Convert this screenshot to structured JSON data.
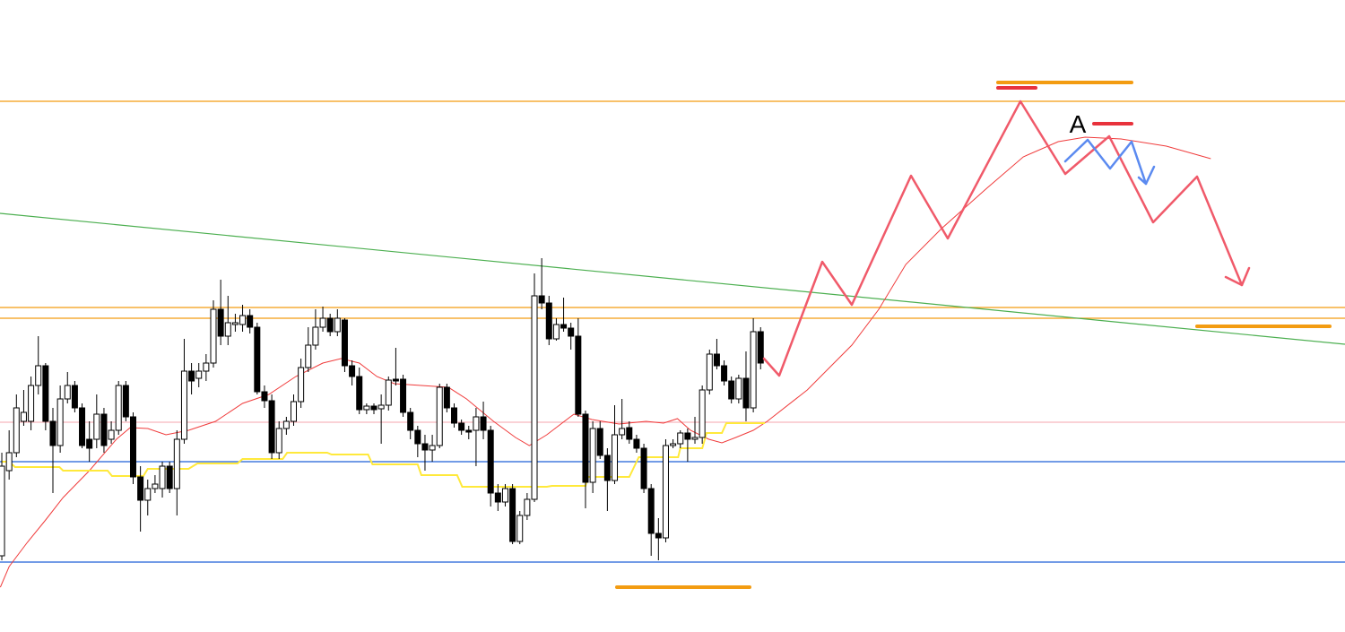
{
  "chart_data": {
    "type": "candlestick",
    "xlim": [
      -0.25,
      184.1
    ],
    "ylim": [
      0,
      705
    ],
    "up_color": "#ffffff",
    "down_color": "#000000",
    "candles": {
      "open": [
        85,
        180,
        200,
        235,
        235,
        275,
        297,
        235,
        208,
        260,
        275,
        250,
        215,
        215,
        243,
        215,
        225,
        275,
        240,
        173,
        147,
        160,
        160,
        185,
        160,
        215,
        291,
        283,
        291,
        300,
        360,
        330,
        343,
        343,
        353,
        340,
        268,
        258,
        200,
        227,
        235,
        257,
        295,
        320,
        340,
        350,
        335,
        348,
        297,
        285,
        248,
        252,
        249,
        253,
        282,
        282,
        245,
        225,
        210,
        203,
        208,
        273,
        250,
        233,
        225,
        225,
        240,
        225,
        155,
        145,
        160,
        101,
        130,
        148,
        375,
        367,
        327,
        343,
        339,
        330,
        243,
        167,
        227,
        197,
        169,
        220,
        228,
        215,
        205,
        160,
        110,
        105,
        208,
        210,
        222,
        215,
        217,
        270,
        310,
        297,
        280,
        260,
        283,
        250,
        335
      ],
      "high": [
        200,
        225,
        265,
        270,
        285,
        330,
        300,
        250,
        275,
        290,
        280,
        255,
        235,
        265,
        250,
        235,
        280,
        280,
        245,
        185,
        170,
        175,
        190,
        190,
        225,
        327,
        300,
        300,
        310,
        370,
        393,
        375,
        355,
        365,
        360,
        345,
        275,
        265,
        235,
        240,
        265,
        305,
        340,
        360,
        363,
        355,
        360,
        350,
        303,
        295,
        255,
        255,
        265,
        285,
        317,
        287,
        250,
        230,
        220,
        220,
        277,
        277,
        255,
        237,
        230,
        250,
        257,
        230,
        165,
        165,
        165,
        135,
        155,
        400,
        417,
        375,
        350,
        373,
        345,
        350,
        247,
        235,
        235,
        205,
        253,
        260,
        235,
        220,
        210,
        165,
        127,
        215,
        215,
        225,
        227,
        240,
        275,
        315,
        327,
        303,
        285,
        287,
        313,
        350,
        340
      ],
      "low": [
        80,
        170,
        195,
        230,
        225,
        265,
        225,
        155,
        200,
        255,
        245,
        205,
        190,
        205,
        200,
        210,
        220,
        235,
        165,
        112,
        130,
        155,
        150,
        155,
        130,
        210,
        265,
        273,
        280,
        295,
        320,
        320,
        335,
        335,
        333,
        265,
        250,
        193,
        193,
        220,
        230,
        250,
        290,
        315,
        335,
        330,
        330,
        290,
        275,
        243,
        243,
        243,
        210,
        247,
        275,
        240,
        215,
        195,
        180,
        190,
        205,
        245,
        228,
        220,
        215,
        185,
        215,
        140,
        135,
        140,
        98,
        98,
        125,
        145,
        360,
        320,
        325,
        335,
        315,
        240,
        138,
        155,
        193,
        135,
        165,
        215,
        210,
        200,
        155,
        85,
        80,
        100,
        205,
        205,
        190,
        210,
        210,
        265,
        293,
        275,
        255,
        255,
        235,
        245,
        293
      ],
      "close": [
        185,
        200,
        250,
        245,
        275,
        297,
        235,
        208,
        260,
        275,
        250,
        208,
        205,
        243,
        208,
        225,
        275,
        240,
        173,
        147,
        160,
        165,
        185,
        160,
        215,
        291,
        280,
        291,
        300,
        360,
        330,
        345,
        345,
        353,
        340,
        268,
        258,
        200,
        227,
        235,
        257,
        295,
        320,
        340,
        350,
        335,
        350,
        297,
        285,
        248,
        252,
        248,
        253,
        281,
        280,
        245,
        225,
        210,
        203,
        208,
        273,
        250,
        233,
        225,
        223,
        240,
        225,
        155,
        145,
        160,
        101,
        130,
        148,
        375,
        367,
        327,
        343,
        339,
        330,
        243,
        167,
        227,
        197,
        169,
        220,
        227,
        215,
        205,
        160,
        110,
        105,
        208,
        210,
        222,
        215,
        217,
        270,
        310,
        297,
        280,
        260,
        283,
        250,
        335,
        300
      ]
    },
    "overlays": [
      {
        "color": "#f03c3c",
        "x": [
          -0.2,
          1,
          3.5,
          6,
          8.4,
          12,
          15.7,
          17.6,
          20,
          22.5,
          25.6,
          29.3,
          33,
          36.6,
          40.3,
          44,
          46.5,
          49,
          51.4,
          53.8,
          57.5,
          61.2,
          63.7,
          67.4,
          70.4,
          72.3,
          74.7,
          78.4,
          80.9,
          84.6,
          88.3,
          90.7,
          92.6,
          94.4,
          96.9,
          98.7,
          100.6,
          103,
          104.9,
          110.4,
          116.5,
          120.2,
          123.9,
          128.8,
          135,
          140,
          144.8,
          148.5,
          153.4,
          159.6,
          165.7
        ],
        "values": [
          50,
          73,
          100,
          125,
          150,
          180,
          215,
          228,
          227,
          220,
          225,
          235,
          255,
          265,
          285,
          300,
          305,
          300,
          285,
          277,
          275,
          273,
          260,
          235,
          217,
          208,
          220,
          243,
          237,
          232,
          235,
          233,
          238,
          225,
          215,
          211,
          217,
          225,
          235,
          270,
          320,
          360,
          410,
          450,
          495,
          530,
          547,
          552,
          550,
          542,
          528
        ]
      },
      {
        "color": "#ffe93b",
        "x": [
          0,
          1,
          1.8,
          7.9,
          8.4,
          14.5,
          15.1,
          19.4,
          20,
          25.6,
          26.8,
          32.3,
          33,
          38.5,
          39.1,
          44.6,
          45.2,
          50.2,
          50.8,
          57,
          57.5,
          62.4,
          63.1,
          74.7,
          75.4,
          80,
          80.3,
          86,
          87.3,
          92.7,
          93,
          96,
          96.6,
          98.7,
          99.3,
          104.6
        ],
        "values": [
          190,
          190,
          184,
          184,
          180,
          180,
          174,
          174,
          182,
          182,
          188,
          188,
          193,
          193,
          200,
          200,
          198,
          198,
          187,
          187,
          175,
          175,
          162,
          162,
          163,
          163,
          173,
          173,
          195,
          195,
          205,
          205,
          222,
          222,
          233,
          233
        ]
      }
    ],
    "trendline": {
      "color": "#4caf50",
      "x": [
        -0.25,
        184.1
      ],
      "values": [
        467,
        321
      ]
    },
    "levels": [
      {
        "value": 592,
        "color": "#f39c12"
      },
      {
        "value": 362,
        "color": "#f39c12"
      },
      {
        "value": 350,
        "color": "#f39c12"
      },
      {
        "value": 234,
        "color": "#f7b6bd"
      },
      {
        "value": 190,
        "color": "#1f5fd6"
      },
      {
        "value": 78,
        "color": "#1f5fd6"
      }
    ],
    "annotation": "A"
  }
}
